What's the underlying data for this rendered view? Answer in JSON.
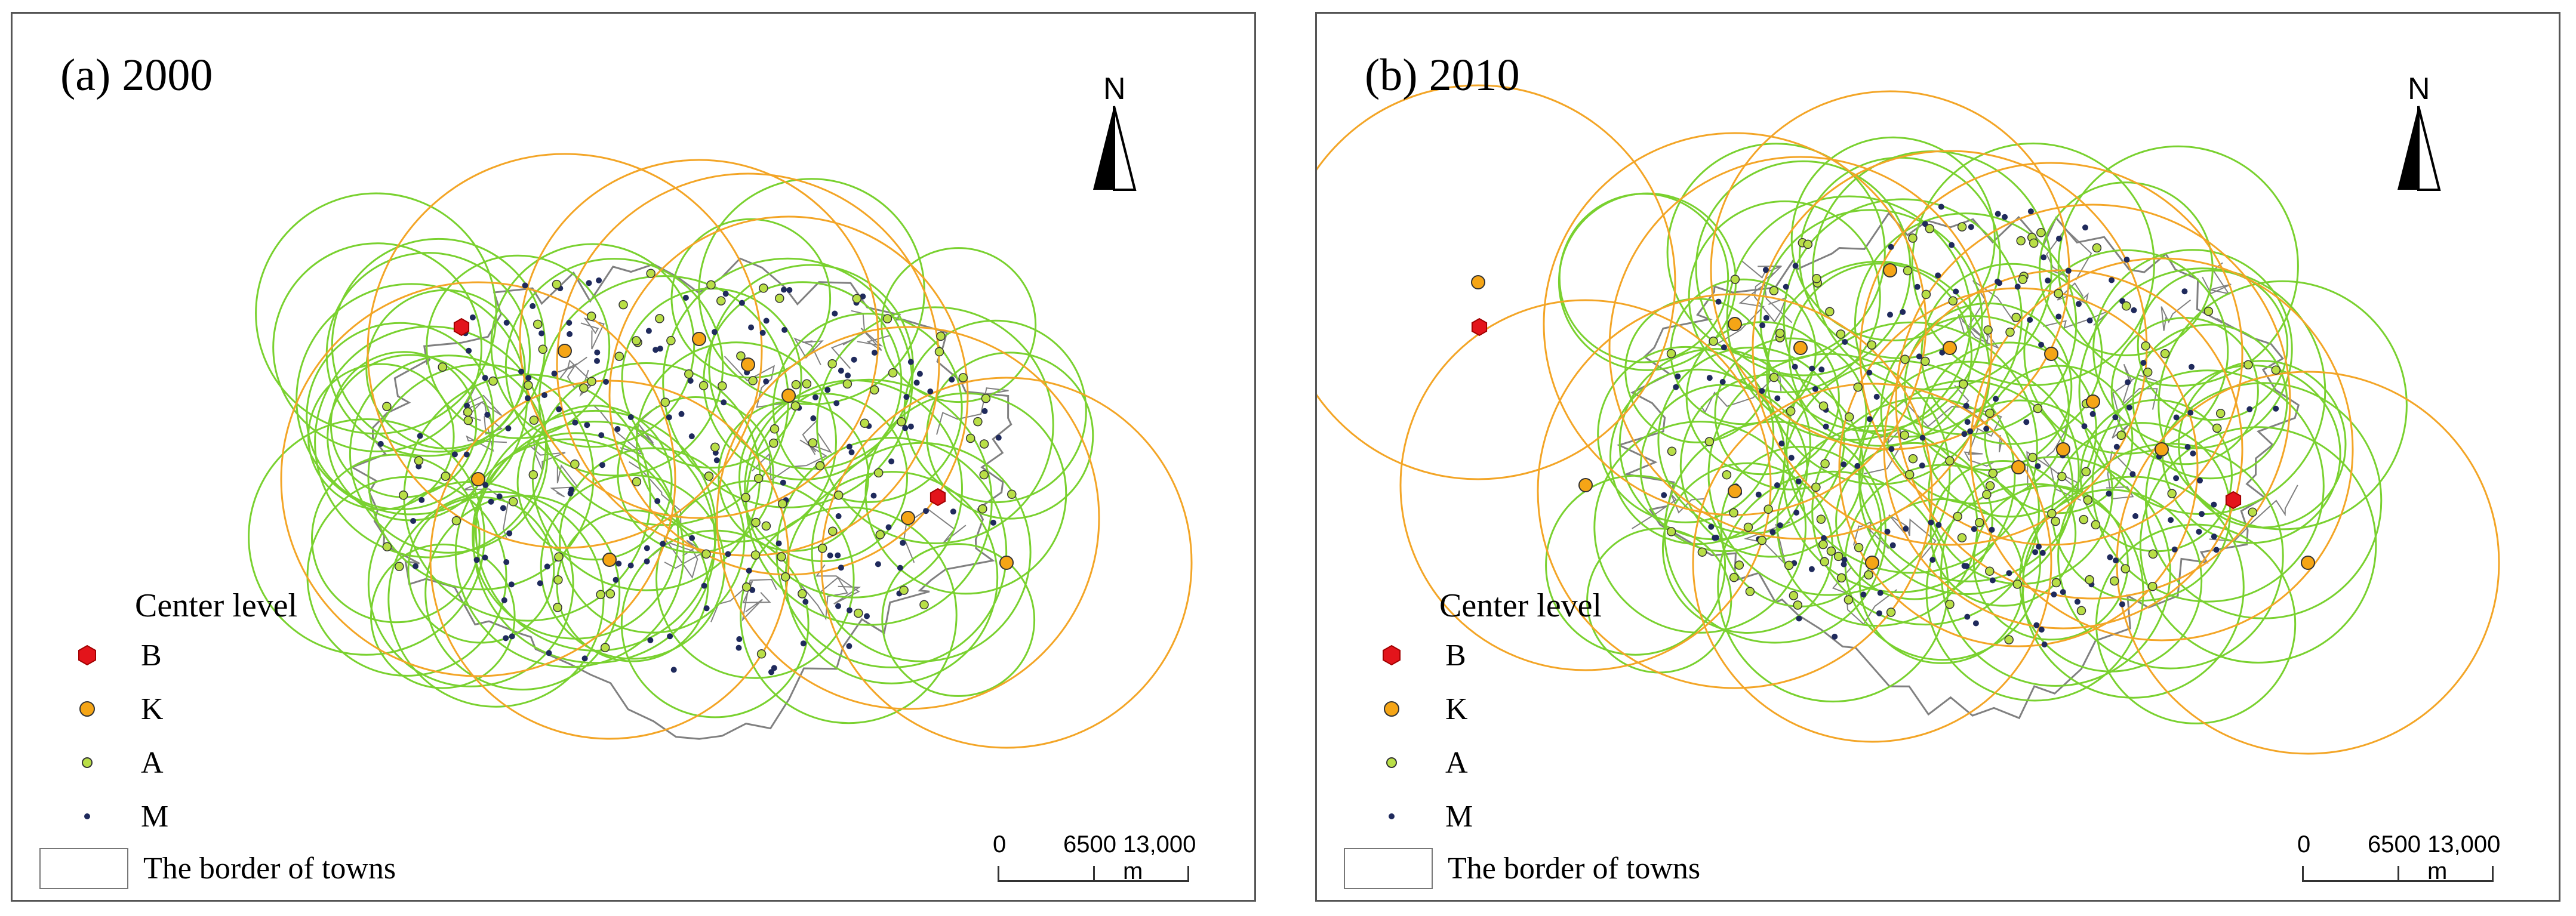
{
  "colors": {
    "B": "#e3141b",
    "K": "#f5a516",
    "A": "#b9df47",
    "M": "#1f2a5c",
    "ring_green": "#79d12f",
    "ring_orange": "#f3a526",
    "ring_red": "#e8161e",
    "border": "#808080"
  },
  "panels": [
    {
      "id": "a",
      "title": "(a) 2000"
    },
    {
      "id": "b",
      "title": "(b) 2010"
    }
  ],
  "north_label": "N",
  "legend": {
    "title": "Center level",
    "items": [
      {
        "label": "B",
        "symbol": "hexagon-red"
      },
      {
        "label": "K",
        "symbol": "circle-orange"
      },
      {
        "label": "A",
        "symbol": "circle-green"
      },
      {
        "label": "M",
        "symbol": "dot-navy"
      }
    ],
    "border_label": "The border of towns"
  },
  "scale": {
    "labels": [
      "0",
      "6500",
      "13,000 m"
    ]
  }
}
